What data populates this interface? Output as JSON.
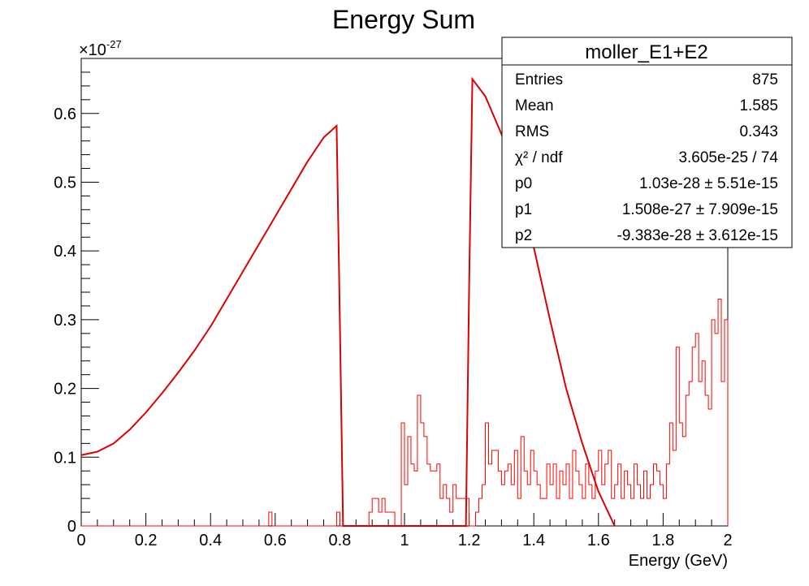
{
  "chart_data": {
    "type": "histogram",
    "title": "Energy Sum",
    "xlabel": "Energy (GeV)",
    "ylabel": "",
    "xlim": [
      0,
      2
    ],
    "ylim": [
      0,
      0.68
    ],
    "y_multiplier": "×10",
    "y_multiplier_exp": "-27",
    "x_ticks": [
      {
        "value": 0,
        "label": "0"
      },
      {
        "value": 0.2,
        "label": "0.2"
      },
      {
        "value": 0.4,
        "label": "0.4"
      },
      {
        "value": 0.6,
        "label": "0.6"
      },
      {
        "value": 0.8,
        "label": "0.8"
      },
      {
        "value": 1.0,
        "label": "1"
      },
      {
        "value": 1.2,
        "label": "1.2"
      },
      {
        "value": 1.4,
        "label": "1.4"
      },
      {
        "value": 1.6,
        "label": "1.6"
      },
      {
        "value": 1.8,
        "label": "1.8"
      },
      {
        "value": 2.0,
        "label": "2"
      }
    ],
    "y_ticks": [
      {
        "value": 0,
        "label": "0"
      },
      {
        "value": 0.1,
        "label": "0.1"
      },
      {
        "value": 0.2,
        "label": "0.2"
      },
      {
        "value": 0.3,
        "label": "0.3"
      },
      {
        "value": 0.4,
        "label": "0.4"
      },
      {
        "value": 0.5,
        "label": "0.5"
      },
      {
        "value": 0.6,
        "label": "0.6"
      }
    ],
    "grid": false,
    "line_color": "#ff0000",
    "fit_color": "#dd0000",
    "histogram": {
      "bin_width": 0.01,
      "bins": [
        [
          0.58,
          0.02
        ],
        [
          0.79,
          0.02
        ],
        [
          0.89,
          0.02
        ],
        [
          0.9,
          0.04
        ],
        [
          0.91,
          0.04
        ],
        [
          0.92,
          0.02
        ],
        [
          0.93,
          0.04
        ],
        [
          0.94,
          0.02
        ],
        [
          0.95,
          0.02
        ],
        [
          0.96,
          0.02
        ],
        [
          0.99,
          0.15
        ],
        [
          1.0,
          0.06
        ],
        [
          1.01,
          0.13
        ],
        [
          1.02,
          0.09
        ],
        [
          1.03,
          0.08
        ],
        [
          1.04,
          0.19
        ],
        [
          1.05,
          0.15
        ],
        [
          1.06,
          0.13
        ],
        [
          1.07,
          0.09
        ],
        [
          1.08,
          0.08
        ],
        [
          1.09,
          0.08
        ],
        [
          1.1,
          0.09
        ],
        [
          1.11,
          0.04
        ],
        [
          1.12,
          0.06
        ],
        [
          1.13,
          0.04
        ],
        [
          1.14,
          0.02
        ],
        [
          1.15,
          0.06
        ],
        [
          1.16,
          0.04
        ],
        [
          1.17,
          0.04
        ],
        [
          1.18,
          0.04
        ],
        [
          1.19,
          0.04
        ],
        [
          1.22,
          0.02
        ],
        [
          1.23,
          0.04
        ],
        [
          1.24,
          0.06
        ],
        [
          1.25,
          0.15
        ],
        [
          1.26,
          0.09
        ],
        [
          1.27,
          0.11
        ],
        [
          1.28,
          0.11
        ],
        [
          1.29,
          0.08
        ],
        [
          1.3,
          0.06
        ],
        [
          1.31,
          0.08
        ],
        [
          1.32,
          0.09
        ],
        [
          1.33,
          0.06
        ],
        [
          1.34,
          0.11
        ],
        [
          1.35,
          0.04
        ],
        [
          1.36,
          0.13
        ],
        [
          1.37,
          0.08
        ],
        [
          1.38,
          0.06
        ],
        [
          1.39,
          0.11
        ],
        [
          1.4,
          0.08
        ],
        [
          1.41,
          0.06
        ],
        [
          1.42,
          0.04
        ],
        [
          1.43,
          0.04
        ],
        [
          1.44,
          0.09
        ],
        [
          1.45,
          0.06
        ],
        [
          1.46,
          0.09
        ],
        [
          1.47,
          0.04
        ],
        [
          1.48,
          0.08
        ],
        [
          1.49,
          0.06
        ],
        [
          1.5,
          0.09
        ],
        [
          1.51,
          0.04
        ],
        [
          1.52,
          0.11
        ],
        [
          1.53,
          0.08
        ],
        [
          1.54,
          0.06
        ],
        [
          1.55,
          0.04
        ],
        [
          1.56,
          0.09
        ],
        [
          1.57,
          0.06
        ],
        [
          1.58,
          0.04
        ],
        [
          1.59,
          0.08
        ],
        [
          1.6,
          0.11
        ],
        [
          1.61,
          0.06
        ],
        [
          1.62,
          0.09
        ],
        [
          1.63,
          0.11
        ],
        [
          1.64,
          0.04
        ],
        [
          1.65,
          0.06
        ],
        [
          1.66,
          0.09
        ],
        [
          1.67,
          0.04
        ],
        [
          1.68,
          0.08
        ],
        [
          1.69,
          0.06
        ],
        [
          1.7,
          0.04
        ],
        [
          1.71,
          0.09
        ],
        [
          1.72,
          0.06
        ],
        [
          1.73,
          0.04
        ],
        [
          1.74,
          0.08
        ],
        [
          1.75,
          0.04
        ],
        [
          1.76,
          0.06
        ],
        [
          1.77,
          0.09
        ],
        [
          1.78,
          0.08
        ],
        [
          1.79,
          0.06
        ],
        [
          1.8,
          0.04
        ],
        [
          1.81,
          0.09
        ],
        [
          1.82,
          0.15
        ],
        [
          1.83,
          0.11
        ],
        [
          1.84,
          0.26
        ],
        [
          1.85,
          0.15
        ],
        [
          1.86,
          0.13
        ],
        [
          1.87,
          0.19
        ],
        [
          1.88,
          0.21
        ],
        [
          1.89,
          0.26
        ],
        [
          1.9,
          0.28
        ],
        [
          1.91,
          0.21
        ],
        [
          1.92,
          0.24
        ],
        [
          1.93,
          0.19
        ],
        [
          1.94,
          0.17
        ],
        [
          1.95,
          0.3
        ],
        [
          1.96,
          0.28
        ],
        [
          1.97,
          0.33
        ],
        [
          1.98,
          0.21
        ],
        [
          1.99,
          0.3
        ]
      ]
    },
    "fit_curve": {
      "x": [
        0.0,
        0.05,
        0.1,
        0.15,
        0.2,
        0.25,
        0.3,
        0.35,
        0.4,
        0.45,
        0.5,
        0.55,
        0.6,
        0.65,
        0.7,
        0.75,
        0.79,
        0.8,
        0.81,
        0.82,
        1.19,
        1.2,
        1.21,
        1.25,
        1.3,
        1.35,
        1.4,
        1.45,
        1.5,
        1.55,
        1.6,
        1.65
      ],
      "y": [
        0.103,
        0.108,
        0.12,
        0.14,
        0.165,
        0.193,
        0.223,
        0.255,
        0.29,
        0.33,
        0.37,
        0.41,
        0.45,
        0.49,
        0.53,
        0.565,
        0.582,
        0.3,
        0.0,
        0.0,
        0.0,
        0.35,
        0.65,
        0.625,
        0.57,
        0.495,
        0.405,
        0.3,
        0.2,
        0.12,
        0.05,
        0.0
      ]
    }
  },
  "stats_box": {
    "title": "moller_E1+E2",
    "rows": [
      {
        "label": "Entries",
        "value": "875"
      },
      {
        "label": "Mean",
        "value": "1.585"
      },
      {
        "label": "RMS",
        "value": "0.343"
      },
      {
        "label": "χ² / ndf",
        "value": "3.605e-25 / 74"
      },
      {
        "label": "p0",
        "value": "1.03e-28 ± 5.51e-15"
      },
      {
        "label": "p1",
        "value": "1.508e-27 ± 7.909e-15"
      },
      {
        "label": "p2",
        "value": "-9.383e-28 ± 3.612e-15"
      }
    ]
  }
}
